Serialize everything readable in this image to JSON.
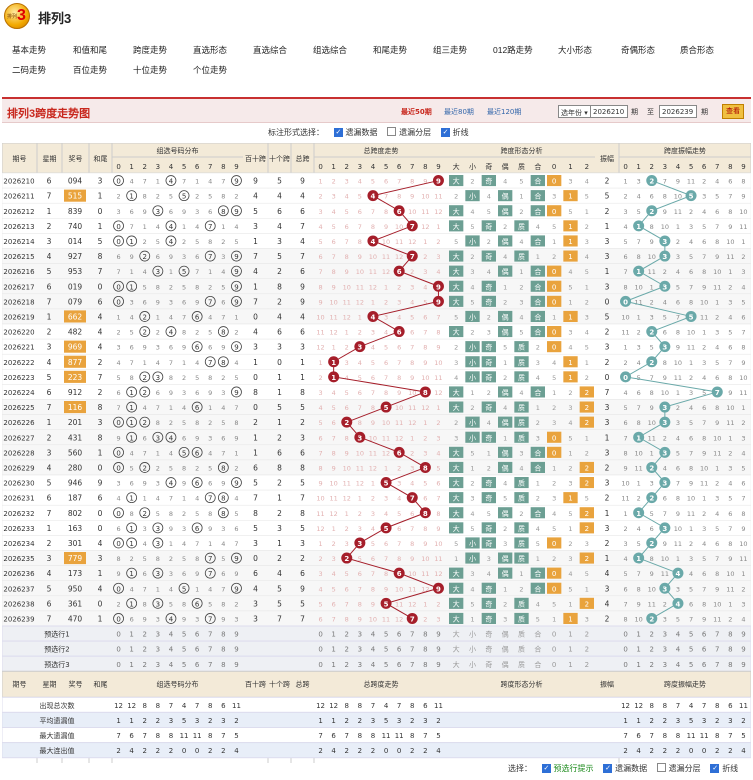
{
  "app": {
    "logo_text": "3",
    "logo_small": "排列",
    "title": "排列3"
  },
  "nav": [
    "基本走势",
    "和值和尾",
    "跨度走势",
    "直选形态",
    "直选综合",
    "组选综合",
    "和尾走势",
    "组三走势",
    "012路走势",
    "大小形态",
    "奇偶形态",
    "质合形态",
    "二码走势",
    "百位走势",
    "十位走势",
    "个位走势"
  ],
  "panel": {
    "title": "排列3跨度走势图",
    "links": [
      "最近50期",
      "最近80期",
      "最近120期"
    ],
    "select": "选年份",
    "from": "2026210",
    "to": "2026239",
    "from_label": "期",
    "to_label": "至",
    "to_suffix": "期",
    "query": "查看"
  },
  "options": {
    "label": "标注形式选择：",
    "items": [
      "遗漏数据",
      "遗漏分层",
      "折线"
    ],
    "checked": [
      true,
      false,
      true
    ]
  },
  "headers": {
    "period": "期号",
    "week": "星期",
    "prize": "奖号",
    "sumtail": "和尾",
    "group_dist": "组选号码分布",
    "bs": "百十跨",
    "sg": "十个跨",
    "total_span": "总跨",
    "span_trend": "总跨度走势",
    "span_form": "跨度形态分析",
    "form_labels": [
      "大",
      "小",
      "奇",
      "偶",
      "质",
      "合",
      "0",
      "1",
      "2"
    ],
    "amp": "振幅",
    "amp_trend": "跨度振幅走势"
  },
  "rows": [
    {
      "period": "2026210",
      "week": "6",
      "prize": "094",
      "tail": "3",
      "bs": "9",
      "sg": "5",
      "span": "9",
      "amp": "2"
    },
    {
      "period": "2026211",
      "week": "7",
      "prize": "515",
      "tail": "1",
      "bs": "4",
      "sg": "4",
      "span": "4",
      "amp": "5"
    },
    {
      "period": "2026212",
      "week": "1",
      "prize": "839",
      "tail": "0",
      "bs": "5",
      "sg": "6",
      "span": "6",
      "amp": "2"
    },
    {
      "period": "2026213",
      "week": "2",
      "prize": "740",
      "tail": "1",
      "bs": "3",
      "sg": "4",
      "span": "7",
      "amp": "1"
    },
    {
      "period": "2026214",
      "week": "3",
      "prize": "014",
      "tail": "5",
      "bs": "1",
      "sg": "3",
      "span": "4",
      "amp": "3"
    },
    {
      "period": "2026215",
      "week": "4",
      "prize": "927",
      "tail": "8",
      "bs": "7",
      "sg": "5",
      "span": "7",
      "amp": "3"
    },
    {
      "period": "2026216",
      "week": "5",
      "prize": "953",
      "tail": "7",
      "bs": "4",
      "sg": "2",
      "span": "6",
      "amp": "1"
    },
    {
      "period": "2026217",
      "week": "6",
      "prize": "019",
      "tail": "0",
      "bs": "1",
      "sg": "8",
      "span": "9",
      "amp": "3"
    },
    {
      "period": "2026218",
      "week": "7",
      "prize": "079",
      "tail": "6",
      "bs": "7",
      "sg": "2",
      "span": "9",
      "amp": "0"
    },
    {
      "period": "2026219",
      "week": "1",
      "prize": "662",
      "tail": "4",
      "bs": "0",
      "sg": "4",
      "span": "4",
      "amp": "5"
    },
    {
      "period": "2026220",
      "week": "2",
      "prize": "482",
      "tail": "4",
      "bs": "4",
      "sg": "6",
      "span": "6",
      "amp": "2"
    },
    {
      "period": "2026221",
      "week": "3",
      "prize": "969",
      "tail": "4",
      "bs": "3",
      "sg": "3",
      "span": "3",
      "amp": "3"
    },
    {
      "period": "2026222",
      "week": "4",
      "prize": "877",
      "tail": "2",
      "bs": "1",
      "sg": "0",
      "span": "1",
      "amp": "2"
    },
    {
      "period": "2026223",
      "week": "5",
      "prize": "223",
      "tail": "7",
      "bs": "0",
      "sg": "1",
      "span": "1",
      "amp": "0"
    },
    {
      "period": "2026224",
      "week": "6",
      "prize": "912",
      "tail": "2",
      "bs": "8",
      "sg": "1",
      "span": "8",
      "amp": "7"
    },
    {
      "period": "2026225",
      "week": "7",
      "prize": "116",
      "tail": "8",
      "bs": "0",
      "sg": "5",
      "span": "5",
      "amp": "3"
    },
    {
      "period": "2026226",
      "week": "1",
      "prize": "201",
      "tail": "3",
      "bs": "2",
      "sg": "1",
      "span": "2",
      "amp": "3"
    },
    {
      "period": "2026227",
      "week": "2",
      "prize": "431",
      "tail": "8",
      "bs": "1",
      "sg": "2",
      "span": "3",
      "amp": "1"
    },
    {
      "period": "2026228",
      "week": "3",
      "prize": "560",
      "tail": "1",
      "bs": "1",
      "sg": "6",
      "span": "6",
      "amp": "3"
    },
    {
      "period": "2026229",
      "week": "4",
      "prize": "280",
      "tail": "0",
      "bs": "6",
      "sg": "8",
      "span": "8",
      "amp": "2"
    },
    {
      "period": "2026230",
      "week": "5",
      "prize": "946",
      "tail": "9",
      "bs": "5",
      "sg": "2",
      "span": "5",
      "amp": "3"
    },
    {
      "period": "2026231",
      "week": "6",
      "prize": "187",
      "tail": "6",
      "bs": "7",
      "sg": "1",
      "span": "7",
      "amp": "2"
    },
    {
      "period": "2026232",
      "week": "7",
      "prize": "802",
      "tail": "0",
      "bs": "8",
      "sg": "2",
      "span": "8",
      "amp": "1"
    },
    {
      "period": "2026233",
      "week": "1",
      "prize": "163",
      "tail": "0",
      "bs": "5",
      "sg": "3",
      "span": "5",
      "amp": "3"
    },
    {
      "period": "2026234",
      "week": "2",
      "prize": "301",
      "tail": "4",
      "bs": "3",
      "sg": "1",
      "span": "3",
      "amp": "2"
    },
    {
      "period": "2026235",
      "week": "3",
      "prize": "779",
      "tail": "3",
      "bs": "0",
      "sg": "2",
      "span": "2",
      "amp": "1"
    },
    {
      "period": "2026236",
      "week": "4",
      "prize": "173",
      "tail": "1",
      "bs": "6",
      "sg": "4",
      "span": "6",
      "amp": "4"
    },
    {
      "period": "2026237",
      "week": "5",
      "prize": "950",
      "tail": "4",
      "bs": "4",
      "sg": "5",
      "span": "9",
      "amp": "3"
    },
    {
      "period": "2026238",
      "week": "6",
      "prize": "361",
      "tail": "0",
      "bs": "3",
      "sg": "5",
      "span": "5",
      "amp": "4"
    },
    {
      "period": "2026239",
      "week": "7",
      "prize": "470",
      "tail": "1",
      "bs": "3",
      "sg": "7",
      "span": "7",
      "amp": "2"
    }
  ],
  "predict_rows": [
    "预选行1",
    "预选行2",
    "预选行3"
  ],
  "stats": [
    {
      "label": "出现总次数",
      "values": "12 12 8 8 7 4 7 8 6 11"
    },
    {
      "label": "平均遗漏值",
      "values": "1 1 2 2 3 5 3 2 3 2"
    },
    {
      "label": "最大遗漏值",
      "values": "7 6 7 8 8 11 11 8 7 5"
    },
    {
      "label": "最大连出值",
      "values": "2 4 2 2 2 0 0 2 2 4"
    }
  ],
  "footer": {
    "label": "选择：",
    "items": [
      "预选行提示",
      "遗漏数据",
      "遗漏分层",
      "折线"
    ],
    "checked": [
      true,
      true,
      false,
      true
    ]
  },
  "colors": {
    "accent": "#c8281e",
    "ball": "#a51e2a",
    "teal": "#6aa9a9",
    "orange": "#e9a33d",
    "green": "#6c9f93"
  }
}
